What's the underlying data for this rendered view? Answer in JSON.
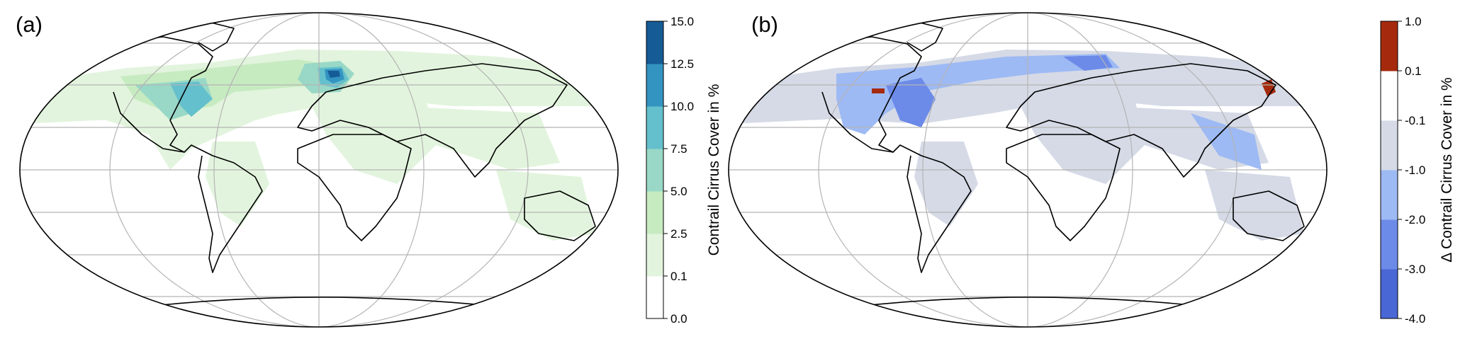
{
  "panels": [
    {
      "id": "a",
      "label": "(a)",
      "colorbar": {
        "title": "Contrail Cirrus Cover in %",
        "ticks": [
          "0.0",
          "0.1",
          "2.5",
          "5.0",
          "7.5",
          "10.0",
          "12.5",
          "15.0"
        ],
        "colors": [
          "#ffffff",
          "#e2f4dd",
          "#c7ebc1",
          "#99d8c6",
          "#64c0cc",
          "#3393c1",
          "#155b96"
        ]
      }
    },
    {
      "id": "b",
      "label": "(b)",
      "colorbar": {
        "title": "Δ Contrail Cirrus Cover in %",
        "ticks": [
          "-4.0",
          "-3.0",
          "-2.0",
          "-1.0",
          "-0.1",
          "0.1",
          "1.0"
        ],
        "colors": [
          "#4a67d6",
          "#6c8ae8",
          "#9ebaf4",
          "#d5dae6",
          "#ffffff",
          "#a52a0d"
        ]
      }
    }
  ]
}
